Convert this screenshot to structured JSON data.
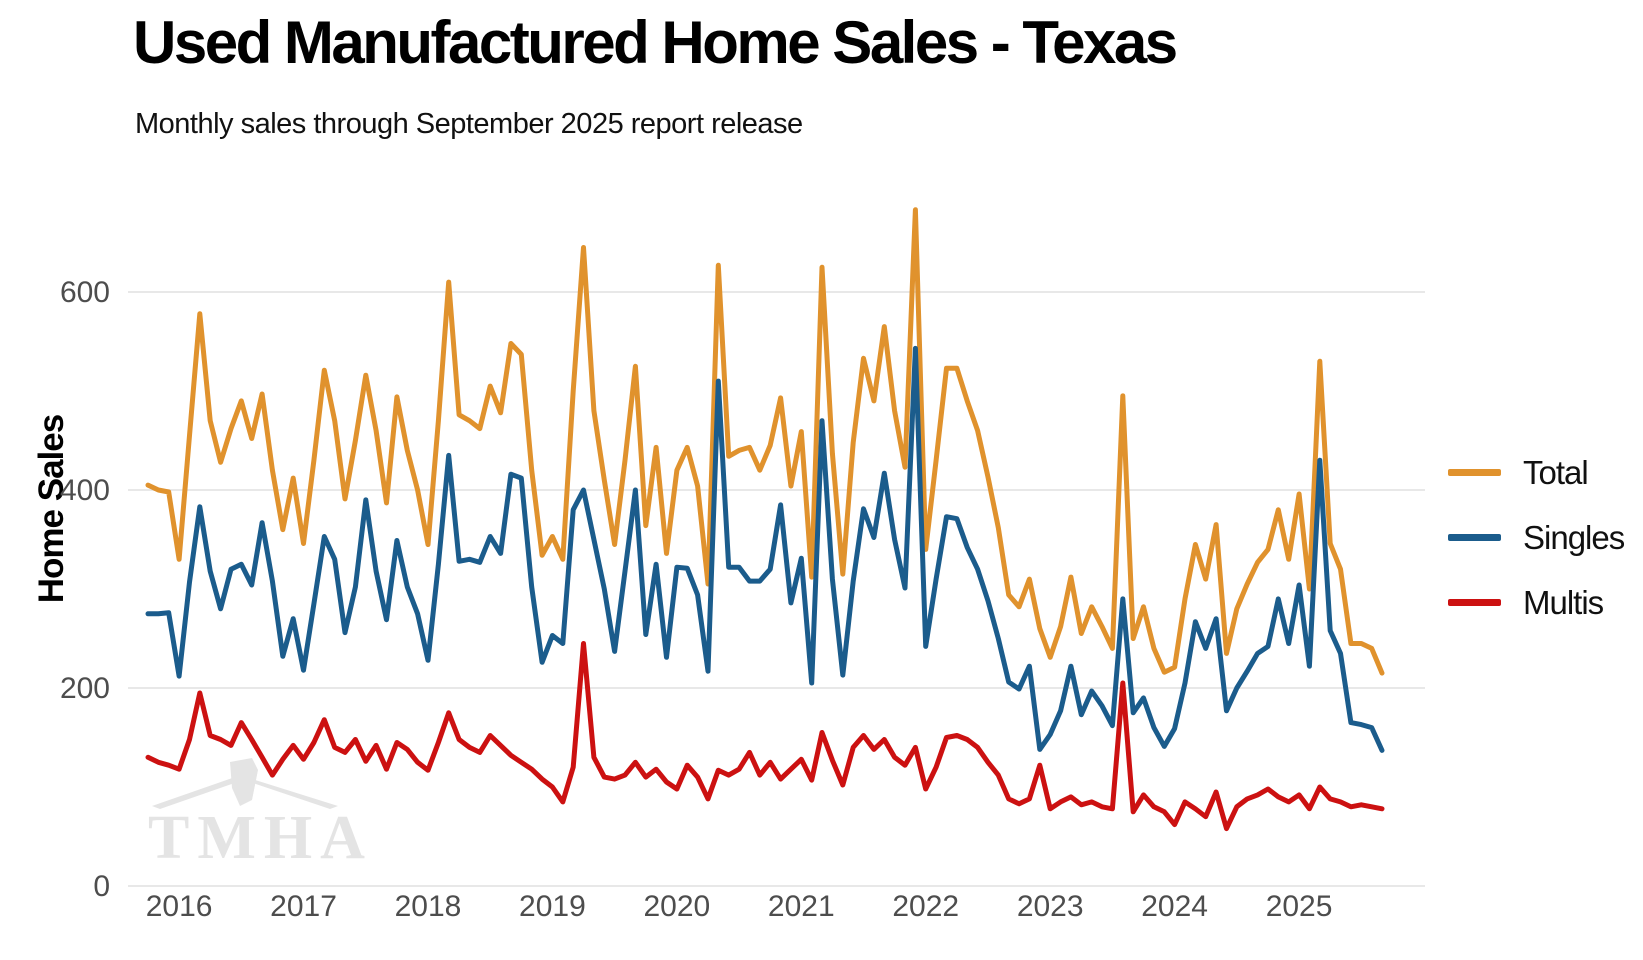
{
  "header": {
    "title": "Used Manufactured Home Sales - Texas",
    "subtitle": "Monthly sales through September 2025 report release"
  },
  "y_axis": {
    "label": "Home Sales",
    "ticks": [
      600,
      400,
      200,
      0
    ]
  },
  "x_axis": {
    "ticks": [
      "2016",
      "2017",
      "2018",
      "2019",
      "2020",
      "2021",
      "2022",
      "2023",
      "2024",
      "2025"
    ]
  },
  "legend": {
    "items": [
      {
        "label": "Total",
        "color": "#E0922D"
      },
      {
        "label": "Singles",
        "color": "#1B5C8C"
      },
      {
        "label": "Multis",
        "color": "#CC1111"
      }
    ]
  },
  "watermark": {
    "text": "TMHA",
    "color": "#e4e4e4"
  },
  "colors": {
    "grid": "#e8e8e8",
    "tick_text": "#4d4d4d",
    "title": "#000000"
  },
  "chart_data": {
    "type": "line",
    "title": "Used Manufactured Home Sales - Texas",
    "subtitle": "Monthly sales through September 2025 report release",
    "ylabel": "Home Sales",
    "xlabel": "",
    "ylim": [
      0,
      700
    ],
    "grid": true,
    "legend_position": "right",
    "x_start_month": "2015-10",
    "x_end_month": "2025-09",
    "x_tick_years": [
      2016,
      2017,
      2018,
      2019,
      2020,
      2021,
      2022,
      2023,
      2024,
      2025
    ],
    "series": [
      {
        "name": "Total",
        "color": "#E0922D",
        "values": [
          405,
          400,
          398,
          330,
          455,
          578,
          470,
          428,
          462,
          490,
          452,
          497,
          420,
          360,
          412,
          346,
          430,
          521,
          470,
          391,
          450,
          516,
          460,
          387,
          494,
          440,
          400,
          345,
          470,
          610,
          476,
          470,
          462,
          505,
          478,
          548,
          537,
          420,
          334,
          353,
          330,
          500,
          645,
          480,
          410,
          345,
          430,
          525,
          364,
          443,
          336,
          420,
          443,
          404,
          305,
          627,
          434,
          440,
          443,
          420,
          445,
          493,
          404,
          459,
          312,
          625,
          437,
          315,
          448,
          533,
          490,
          565,
          480,
          423,
          683,
          340,
          430,
          523,
          523,
          490,
          460,
          413,
          362,
          294,
          282,
          310,
          260,
          231,
          262,
          312,
          255,
          282,
          262,
          240,
          495,
          250,
          282,
          240,
          216,
          221,
          290,
          345,
          310,
          365,
          235,
          280,
          305,
          327,
          340,
          380,
          330,
          396,
          300,
          530,
          346,
          320,
          245,
          245,
          240,
          215
        ]
      },
      {
        "name": "Singles",
        "color": "#1B5C8C",
        "values": [
          275,
          275,
          276,
          212,
          307,
          383,
          318,
          280,
          320,
          325,
          304,
          367,
          308,
          232,
          270,
          218,
          285,
          353,
          330,
          256,
          302,
          390,
          318,
          269,
          349,
          302,
          275,
          228,
          325,
          435,
          328,
          330,
          327,
          353,
          336,
          416,
          412,
          302,
          226,
          253,
          245,
          380,
          400,
          350,
          300,
          237,
          318,
          400,
          254,
          325,
          231,
          322,
          321,
          294,
          217,
          510,
          322,
          322,
          308,
          308,
          320,
          385,
          286,
          331,
          205,
          470,
          310,
          213,
          308,
          381,
          352,
          417,
          350,
          301,
          543,
          242,
          310,
          373,
          371,
          342,
          320,
          288,
          250,
          206,
          199,
          222,
          138,
          153,
          177,
          222,
          173,
          197,
          182,
          162,
          290,
          175,
          190,
          160,
          141,
          159,
          205,
          267,
          240,
          270,
          177,
          200,
          217,
          235,
          242,
          290,
          245,
          304,
          222,
          430,
          258,
          235,
          165,
          163,
          160,
          137
        ]
      },
      {
        "name": "Multis",
        "color": "#CC1111",
        "values": [
          130,
          125,
          122,
          118,
          148,
          195,
          152,
          148,
          142,
          165,
          148,
          130,
          112,
          128,
          142,
          128,
          145,
          168,
          140,
          135,
          148,
          126,
          142,
          118,
          145,
          138,
          125,
          117,
          145,
          175,
          148,
          140,
          135,
          152,
          142,
          132,
          125,
          118,
          108,
          100,
          85,
          120,
          245,
          130,
          110,
          108,
          112,
          125,
          110,
          118,
          105,
          98,
          122,
          110,
          88,
          117,
          112,
          118,
          135,
          112,
          125,
          108,
          118,
          128,
          107,
          155,
          127,
          102,
          140,
          152,
          138,
          148,
          130,
          122,
          140,
          98,
          120,
          150,
          152,
          148,
          140,
          125,
          112,
          88,
          83,
          88,
          122,
          78,
          85,
          90,
          82,
          85,
          80,
          78,
          205,
          75,
          92,
          80,
          75,
          62,
          85,
          78,
          70,
          95,
          58,
          80,
          88,
          92,
          98,
          90,
          85,
          92,
          78,
          100,
          88,
          85,
          80,
          82,
          80,
          78
        ]
      }
    ]
  }
}
